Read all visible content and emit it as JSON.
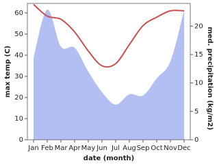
{
  "chart_data": {
    "type": "line-area",
    "x_label": "date (month)",
    "y_label": "max temp (C)",
    "y2_label": "med. precipitation (kg/m2)",
    "categories": [
      "Jan",
      "Feb",
      "Mar",
      "Apr",
      "May",
      "Jun",
      "Jul",
      "Aug",
      "Sep",
      "Oct",
      "Nov",
      "Dec"
    ],
    "series": [
      {
        "name": "max temp",
        "type": "line",
        "color": "#c85050",
        "values": [
          64,
          58.5,
          57,
          51,
          42,
          35,
          36,
          45,
          54,
          58,
          61,
          61
        ]
      },
      {
        "name": "med. precipitation",
        "type": "area",
        "axis": "y2",
        "color": "#b3bff2",
        "values": [
          14.4,
          22.9,
          16.4,
          16.2,
          12,
          8.4,
          6.2,
          8,
          7.8,
          10.8,
          13.8,
          22.8
        ]
      }
    ],
    "ylim": [
      0,
      64.5
    ],
    "yticks": [
      0,
      10,
      20,
      30,
      40,
      50,
      60
    ],
    "y2lim": [
      0,
      24
    ],
    "y2ticks": [
      0,
      5,
      10,
      15,
      20
    ]
  }
}
